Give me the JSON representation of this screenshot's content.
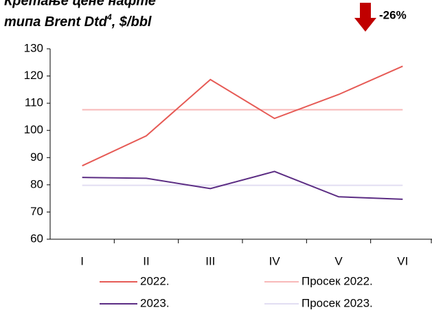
{
  "chart_data": {
    "type": "line",
    "title_line1": "Кретање цене нафте",
    "title_line2": "типа Brent Dtd",
    "title_footnote": "4",
    "title_line2_end": ", $/bbl",
    "annotation": "-26%",
    "categories": [
      "I",
      "II",
      "III",
      "IV",
      "V",
      "VI"
    ],
    "series": [
      {
        "name": "2022.",
        "color": "#e65a55",
        "values": [
          87,
          98,
          118.7,
          104.4,
          113.2,
          123.6
        ]
      },
      {
        "name": "Просек 2022.",
        "color": "#f8b8b8",
        "values": [
          107.6,
          107.6,
          107.6,
          107.6,
          107.6,
          107.6
        ]
      },
      {
        "name": "2023.",
        "color": "#5b2c83",
        "values": [
          82.7,
          82.4,
          78.6,
          84.9,
          75.6,
          74.7
        ]
      },
      {
        "name": "Просек 2023.",
        "color": "#e2def2",
        "values": [
          79.8,
          79.8,
          79.8,
          79.8,
          79.8,
          79.8
        ]
      }
    ],
    "ylim": [
      60,
      130
    ],
    "yticks": [
      60,
      70,
      80,
      90,
      100,
      110,
      120,
      130
    ],
    "grid": false
  }
}
